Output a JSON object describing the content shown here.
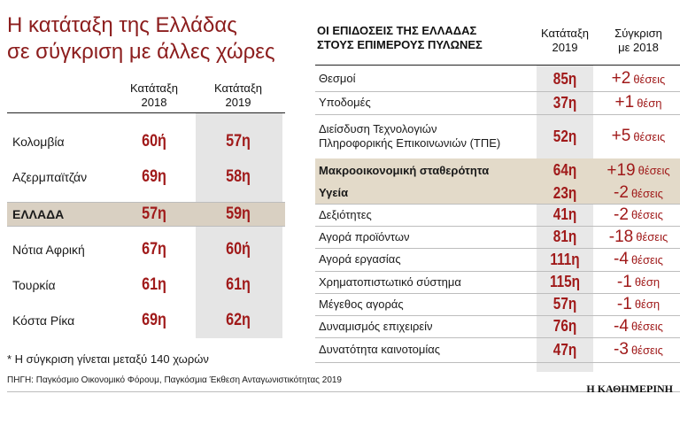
{
  "left": {
    "title_line1": "Η κατάταξη της Ελλάδας",
    "title_line2": "σε σύγκριση με άλλες χώρες",
    "col2018_l1": "Κατάταξη",
    "col2018_l2": "2018",
    "col2019_l1": "Κατάταξη",
    "col2019_l2": "2019",
    "rows": [
      {
        "country": "Κολομβία",
        "r2018": "60ή",
        "r2019": "57η"
      },
      {
        "country": "Αζερμπαϊτζάν",
        "r2018": "69η",
        "r2019": "58η"
      },
      {
        "country": "ΕΛΛΑΔΑ",
        "r2018": "57η",
        "r2019": "59η"
      },
      {
        "country": "Νότια Αφρική",
        "r2018": "67η",
        "r2019": "60ή"
      },
      {
        "country": "Τουρκία",
        "r2018": "61η",
        "r2019": "61η"
      },
      {
        "country": "Κόστα Ρίκα",
        "r2018": "69η",
        "r2019": "62η"
      }
    ],
    "footnote": "* Η σύγκριση γίνεται μεταξύ 140 χωρών"
  },
  "right": {
    "title_line1": "ΟΙ ΕΠΙΔΟΣΕΙΣ ΤΗΣ ΕΛΛΑΔΑΣ",
    "title_line2": "ΣΤΟΥΣ ΕΠΙΜΕΡΟΥΣ ΠΥΛΩΝΕΣ",
    "col_rank_l1": "Κατάταξη",
    "col_rank_l2": "2019",
    "col_cmp_l1": "Σύγκριση",
    "col_cmp_l2": "με 2018",
    "rows": [
      {
        "label1": "Θεσμοί",
        "label2": "",
        "rank": "85η",
        "num": "+2",
        "word": "θέσεις"
      },
      {
        "label1": "Υποδομές",
        "label2": "",
        "rank": "37η",
        "num": "+1",
        "word": "θέση"
      },
      {
        "label1": "Διείσδυση Τεχνολογιών",
        "label2": "Πληροφορικής Επικοινωνιών (ΤΠΕ)",
        "rank": "52η",
        "num": "+5",
        "word": "θέσεις"
      },
      {
        "label1": "Μακροοικονομική σταθερότητα",
        "label2": "",
        "rank": "64η",
        "num": "+19",
        "word": "θέσεις"
      },
      {
        "label1": "Υγεία",
        "label2": "",
        "rank": "23η",
        "num": "-2",
        "word": "θέσεις"
      },
      {
        "label1": "Δεξιότητες",
        "label2": "",
        "rank": "41η",
        "num": "-2",
        "word": "θέσεις"
      },
      {
        "label1": "Αγορά προϊόντων",
        "label2": "",
        "rank": "81η",
        "num": "-18",
        "word": "θέσεις"
      },
      {
        "label1": "Αγορά εργασίας",
        "label2": "",
        "rank": "111η",
        "num": "-4",
        "word": "θέσεις"
      },
      {
        "label1": "Χρηματοπιστωτικό σύστημα",
        "label2": "",
        "rank": "115η",
        "num": "-1",
        "word": "θέση"
      },
      {
        "label1": "Μέγεθος αγοράς",
        "label2": "",
        "rank": "57η",
        "num": "-1",
        "word": "θέση"
      },
      {
        "label1": "Δυναμισμός επιχειρείν",
        "label2": "",
        "rank": "76η",
        "num": "-4",
        "word": "θέσεις"
      },
      {
        "label1": "Δυνατότητα καινοτομίας",
        "label2": "",
        "rank": "47η",
        "num": "-3",
        "word": "θέσεις"
      }
    ]
  },
  "source": "ΠΗΓΗ: Παγκόσμιο Οικονομικό Φόρουμ, Παγκόσμια Έκθεση Ανταγωνιστικότητας 2019",
  "brand": "Η ΚΑΘΗΜΕΡΙΝΗ",
  "colors": {
    "accent": "#a01a1a",
    "title": "#8c1d1d",
    "highlight": "#d9d0c2",
    "grey_column": "#e5e5e5"
  },
  "chart_data": [
    {
      "type": "table",
      "title": "Η κατάταξη της Ελλάδας σε σύγκριση με άλλες χώρες",
      "columns": [
        "",
        "Κατάταξη 2018",
        "Κατάταξη 2019"
      ],
      "categories": [
        "Κολομβία",
        "Αζερμπαϊτζάν",
        "ΕΛΛΑΔΑ",
        "Νότια Αφρική",
        "Τουρκία",
        "Κόστα Ρίκα"
      ],
      "series": [
        {
          "name": "Κατάταξη 2018",
          "values": [
            60,
            69,
            57,
            67,
            61,
            69
          ]
        },
        {
          "name": "Κατάταξη 2019",
          "values": [
            57,
            58,
            59,
            60,
            61,
            62
          ]
        }
      ],
      "highlight": "ΕΛΛΑΔΑ"
    },
    {
      "type": "table",
      "title": "ΟΙ ΕΠΙΔΟΣΕΙΣ ΤΗΣ ΕΛΛΑΔΑΣ ΣΤΟΥΣ ΕΠΙΜΕΡΟΥΣ ΠΥΛΩΝΕΣ",
      "columns": [
        "",
        "Κατάταξη 2019",
        "Σύγκριση με 2018"
      ],
      "categories": [
        "Θεσμοί",
        "Υποδομές",
        "Διείσδυση Τεχνολογιών Πληροφορικής Επικοινωνιών (ΤΠΕ)",
        "Μακροοικονομική σταθερότητα",
        "Υγεία",
        "Δεξιότητες",
        "Αγορά προϊόντων",
        "Αγορά εργασίας",
        "Χρηματοπιστωτικό σύστημα",
        "Μέγεθος αγοράς",
        "Δυναμισμός επιχειρείν",
        "Δυνατότητα καινοτομίας"
      ],
      "series": [
        {
          "name": "Κατάταξη 2019",
          "values": [
            85,
            37,
            52,
            64,
            23,
            41,
            81,
            111,
            115,
            57,
            76,
            47
          ]
        },
        {
          "name": "Σύγκριση με 2018",
          "values": [
            2,
            1,
            5,
            19,
            -2,
            -2,
            -18,
            -4,
            -1,
            -1,
            -4,
            -3
          ]
        }
      ],
      "highlight": [
        "Μακροοικονομική σταθερότητα",
        "Υγεία"
      ]
    }
  ]
}
